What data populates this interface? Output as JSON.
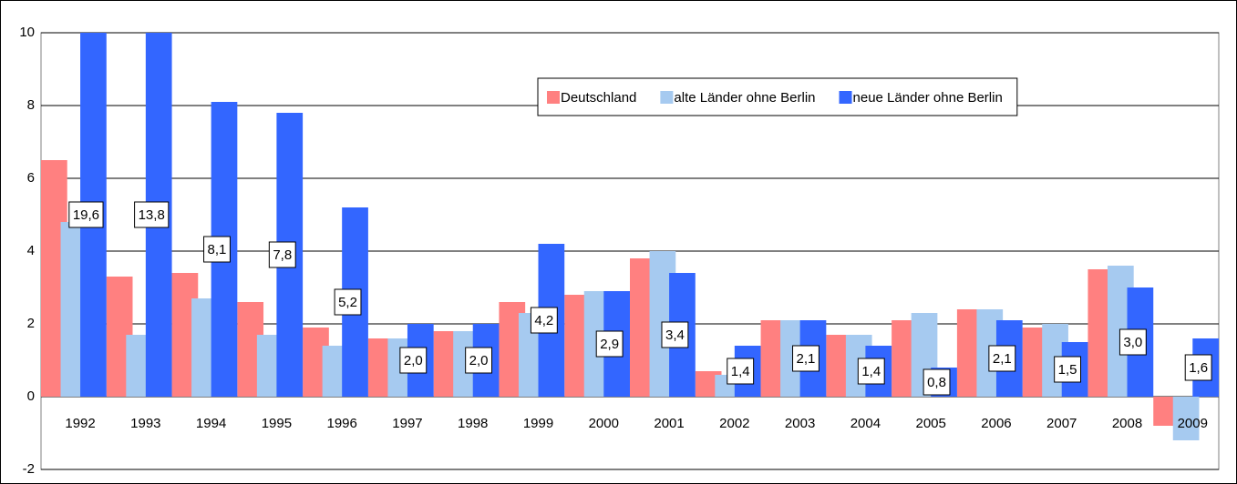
{
  "chart_data": {
    "type": "bar",
    "categories": [
      "1992",
      "1993",
      "1994",
      "1995",
      "1996",
      "1997",
      "1998",
      "1999",
      "2000",
      "2001",
      "2002",
      "2003",
      "2004",
      "2005",
      "2006",
      "2007",
      "2008",
      "2009"
    ],
    "series": [
      {
        "name": "Deutschland",
        "color": "#ff8080",
        "values": [
          6.5,
          3.3,
          3.4,
          2.6,
          1.9,
          1.6,
          1.8,
          2.6,
          2.8,
          3.8,
          0.7,
          2.1,
          1.7,
          2.1,
          2.4,
          1.9,
          3.5,
          -0.8
        ]
      },
      {
        "name": "alte Länder ohne Berlin",
        "color": "#a6caf0",
        "values": [
          4.8,
          1.7,
          2.7,
          1.7,
          1.4,
          1.6,
          1.8,
          2.3,
          2.9,
          4.0,
          0.6,
          2.1,
          1.7,
          2.3,
          2.4,
          2.0,
          3.6,
          -1.2
        ]
      },
      {
        "name": "neue Länder ohne Berlin",
        "color": "#3366ff",
        "values": [
          19.6,
          13.8,
          8.1,
          7.8,
          5.2,
          2.0,
          2.0,
          4.2,
          2.9,
          3.4,
          1.4,
          2.1,
          1.4,
          0.8,
          2.1,
          1.5,
          3.0,
          1.6
        ],
        "value_labels": [
          "19,6",
          "13,8",
          "8,1",
          "7,8",
          "5,2",
          "2,0",
          "2,0",
          "4,2",
          "2,9",
          "3,4",
          "1,4",
          "2,1",
          "1,4",
          "0,8",
          "2,1",
          "1,5",
          "3,0",
          "1,6"
        ]
      }
    ],
    "ylim": [
      -2,
      10
    ],
    "yticks": [
      -2,
      0,
      2,
      4,
      6,
      8,
      10
    ],
    "grid": true,
    "legend": "top-right"
  }
}
